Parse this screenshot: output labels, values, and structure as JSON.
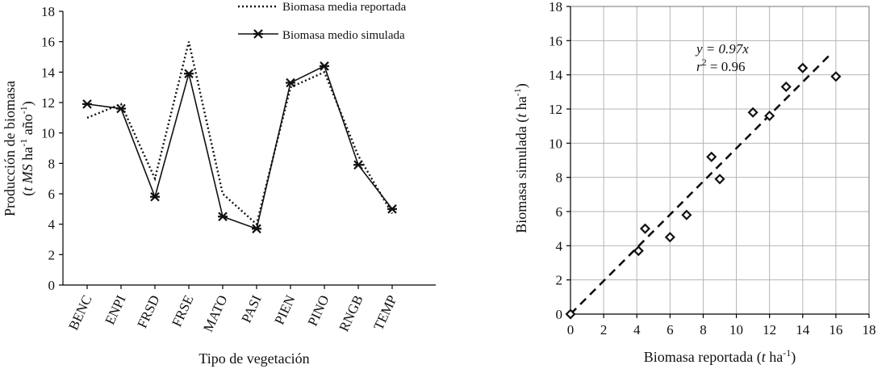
{
  "chart_data": [
    {
      "type": "line",
      "xlabel": "Tipo de vegetación",
      "ylabel_line1": "Producción de biomasa",
      "ylabel_line2_parts": [
        "(",
        "t MS",
        " ha",
        "-1",
        " año",
        "-1",
        ")"
      ],
      "ylim": [
        0,
        18
      ],
      "yticks": [
        "0",
        "2",
        "4",
        "6",
        "8",
        "10",
        "12",
        "14",
        "16",
        "18"
      ],
      "categories": [
        "BENC",
        "ENPI",
        "FRSD",
        "FRSE",
        "MATO",
        "PASI",
        "PIEN",
        "PINO",
        "RNGB",
        "TEMP"
      ],
      "legend_position": "top-right",
      "series": [
        {
          "name": "Biomasa media reportada",
          "style": "dotted",
          "values": [
            11.0,
            11.9,
            7.0,
            16.0,
            6.0,
            4.0,
            13.0,
            14.0,
            8.5,
            4.7
          ]
        },
        {
          "name": "Biomasa medio simulada",
          "style": "solid-star-marker",
          "values": [
            11.9,
            11.6,
            5.8,
            13.9,
            4.5,
            3.7,
            13.3,
            14.4,
            7.9,
            5.0
          ]
        }
      ]
    },
    {
      "type": "scatter",
      "xlabel_parts": [
        "Biomasa reportada (",
        "t",
        " ha",
        "-1",
        ")"
      ],
      "ylabel_parts": [
        "Biomasa simulada (",
        "t",
        "  ha",
        "-1",
        ")"
      ],
      "xlim": [
        0,
        18
      ],
      "ylim": [
        0,
        18
      ],
      "xticks": [
        "0",
        "2",
        "4",
        "6",
        "8",
        "10",
        "12",
        "14",
        "16",
        "18"
      ],
      "yticks": [
        "0",
        "2",
        "4",
        "6",
        "8",
        "10",
        "12",
        "14",
        "16",
        "18"
      ],
      "grid": true,
      "annotation_eq": "y = 0.97x",
      "annotation_r2": [
        "r",
        "2",
        " = 0.96"
      ],
      "fit_line": {
        "slope": 0.97,
        "x_range": [
          0,
          15.6
        ]
      },
      "points": [
        {
          "x": 0,
          "y": 0
        },
        {
          "x": 4.1,
          "y": 3.7
        },
        {
          "x": 4.5,
          "y": 5.0
        },
        {
          "x": 6.0,
          "y": 4.5
        },
        {
          "x": 7.0,
          "y": 5.8
        },
        {
          "x": 8.5,
          "y": 9.2
        },
        {
          "x": 9.0,
          "y": 7.9
        },
        {
          "x": 11.0,
          "y": 11.8
        },
        {
          "x": 12.0,
          "y": 11.6
        },
        {
          "x": 13.0,
          "y": 13.3
        },
        {
          "x": 14.0,
          "y": 14.4
        },
        {
          "x": 16.0,
          "y": 13.9
        }
      ]
    }
  ]
}
